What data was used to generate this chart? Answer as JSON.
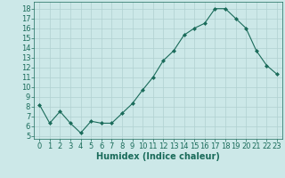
{
  "x": [
    0,
    1,
    2,
    3,
    4,
    5,
    6,
    7,
    8,
    9,
    10,
    11,
    12,
    13,
    14,
    15,
    16,
    17,
    18,
    19,
    20,
    21,
    22,
    23
  ],
  "y": [
    8.2,
    6.3,
    7.5,
    6.3,
    5.3,
    6.5,
    6.3,
    6.3,
    7.3,
    8.3,
    9.7,
    11.0,
    12.7,
    13.7,
    15.3,
    16.0,
    16.5,
    18.0,
    18.0,
    17.0,
    16.0,
    13.7,
    12.2,
    11.3
  ],
  "line_color": "#1a6b5a",
  "marker": "D",
  "marker_size": 2.0,
  "bg_color": "#cce8e8",
  "grid_color": "#b0d0d0",
  "xlabel": "Humidex (Indice chaleur)",
  "ylabel_ticks": [
    5,
    6,
    7,
    8,
    9,
    10,
    11,
    12,
    13,
    14,
    15,
    16,
    17,
    18
  ],
  "ylim": [
    4.7,
    18.7
  ],
  "xlim": [
    -0.5,
    23.5
  ],
  "xtick_labels": [
    "0",
    "1",
    "2",
    "3",
    "4",
    "5",
    "6",
    "7",
    "8",
    "9",
    "10",
    "11",
    "12",
    "13",
    "14",
    "15",
    "16",
    "17",
    "18",
    "19",
    "20",
    "21",
    "22",
    "23"
  ],
  "label_fontsize": 7,
  "tick_fontsize": 6
}
